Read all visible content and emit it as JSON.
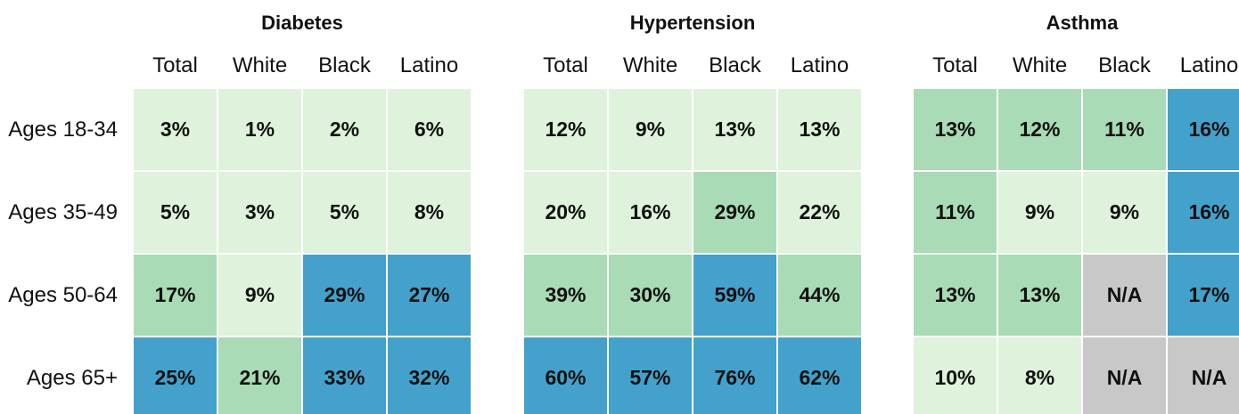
{
  "row_labels": [
    "Ages 18-34",
    "Ages 35-49",
    "Ages 50-64",
    "Ages 65+"
  ],
  "groups": [
    {
      "title": "Diabetes",
      "columns": [
        "Total",
        "White",
        "Black",
        "Latino"
      ],
      "rows": [
        [
          {
            "text": "3%",
            "color": "#dff2dc"
          },
          {
            "text": "1%",
            "color": "#dff2dc"
          },
          {
            "text": "2%",
            "color": "#dff2dc"
          },
          {
            "text": "6%",
            "color": "#dff2dc"
          }
        ],
        [
          {
            "text": "5%",
            "color": "#dff2dc"
          },
          {
            "text": "3%",
            "color": "#dff2dc"
          },
          {
            "text": "5%",
            "color": "#dff2dc"
          },
          {
            "text": "8%",
            "color": "#dff2dc"
          }
        ],
        [
          {
            "text": "17%",
            "color": "#a8dbb6"
          },
          {
            "text": "9%",
            "color": "#dff2dc"
          },
          {
            "text": "29%",
            "color": "#43a1cb"
          },
          {
            "text": "27%",
            "color": "#43a1cb"
          }
        ],
        [
          {
            "text": "25%",
            "color": "#43a1cb"
          },
          {
            "text": "21%",
            "color": "#a8dbb6"
          },
          {
            "text": "33%",
            "color": "#43a1cb"
          },
          {
            "text": "32%",
            "color": "#43a1cb"
          }
        ]
      ]
    },
    {
      "title": "Hypertension",
      "columns": [
        "Total",
        "White",
        "Black",
        "Latino"
      ],
      "rows": [
        [
          {
            "text": "12%",
            "color": "#dff2dc"
          },
          {
            "text": "9%",
            "color": "#dff2dc"
          },
          {
            "text": "13%",
            "color": "#dff2dc"
          },
          {
            "text": "13%",
            "color": "#dff2dc"
          }
        ],
        [
          {
            "text": "20%",
            "color": "#dff2dc"
          },
          {
            "text": "16%",
            "color": "#dff2dc"
          },
          {
            "text": "29%",
            "color": "#a8dbb6"
          },
          {
            "text": "22%",
            "color": "#dff2dc"
          }
        ],
        [
          {
            "text": "39%",
            "color": "#a8dbb6"
          },
          {
            "text": "30%",
            "color": "#a8dbb6"
          },
          {
            "text": "59%",
            "color": "#43a1cb"
          },
          {
            "text": "44%",
            "color": "#a8dbb6"
          }
        ],
        [
          {
            "text": "60%",
            "color": "#43a1cb"
          },
          {
            "text": "57%",
            "color": "#43a1cb"
          },
          {
            "text": "76%",
            "color": "#43a1cb"
          },
          {
            "text": "62%",
            "color": "#43a1cb"
          }
        ]
      ]
    },
    {
      "title": "Asthma",
      "columns": [
        "Total",
        "White",
        "Black",
        "Latino"
      ],
      "rows": [
        [
          {
            "text": "13%",
            "color": "#a8dbb6"
          },
          {
            "text": "12%",
            "color": "#a8dbb6"
          },
          {
            "text": "11%",
            "color": "#a8dbb6"
          },
          {
            "text": "16%",
            "color": "#43a1cb"
          }
        ],
        [
          {
            "text": "11%",
            "color": "#a8dbb6"
          },
          {
            "text": "9%",
            "color": "#dff2dc"
          },
          {
            "text": "9%",
            "color": "#dff2dc"
          },
          {
            "text": "16%",
            "color": "#43a1cb"
          }
        ],
        [
          {
            "text": "13%",
            "color": "#a8dbb6"
          },
          {
            "text": "13%",
            "color": "#a8dbb6"
          },
          {
            "text": "N/A",
            "color": "#c8c8c8"
          },
          {
            "text": "17%",
            "color": "#43a1cb"
          }
        ],
        [
          {
            "text": "10%",
            "color": "#dff2dc"
          },
          {
            "text": "8%",
            "color": "#dff2dc"
          },
          {
            "text": "N/A",
            "color": "#c8c8c8"
          },
          {
            "text": "N/A",
            "color": "#c8c8c8"
          }
        ]
      ]
    }
  ]
}
